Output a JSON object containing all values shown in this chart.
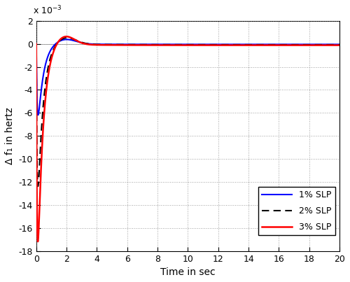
{
  "title": "",
  "xlabel": "Time in sec",
  "ylabel": "Δ f₁ in hertz",
  "xlim": [
    0,
    20
  ],
  "ylim": [
    -0.018,
    0.002
  ],
  "yticks": [
    -18,
    -16,
    -14,
    -12,
    -10,
    -8,
    -6,
    -4,
    -2,
    0,
    2
  ],
  "xticks": [
    0,
    2,
    4,
    6,
    8,
    10,
    12,
    14,
    16,
    18,
    20
  ],
  "scale_label": "x 10$^{-3}$",
  "background_color": "#ffffff",
  "grid_color": "#888888",
  "line1_color": "#0000ff",
  "line2_color": "#000000",
  "line3_color": "#ff0000",
  "legend_labels": [
    "1% SLP",
    "2% SLP",
    "3% SLP"
  ],
  "curves": {
    "slp1": {
      "dip_amp": -0.0062,
      "alpha": 2.8,
      "beta": 18.0,
      "overshoot_amp": 0.00045,
      "t_over": 1.9,
      "sigma_over": 0.7,
      "tau_settle": 2.5,
      "ss": -5e-05
    },
    "slp2": {
      "dip_amp": -0.0124,
      "alpha": 2.8,
      "beta": 20.0,
      "overshoot_amp": 0.00065,
      "t_over": 1.9,
      "sigma_over": 0.7,
      "tau_settle": 2.5,
      "ss": -8e-05
    },
    "slp3": {
      "dip_amp": -0.0172,
      "alpha": 2.8,
      "beta": 22.0,
      "overshoot_amp": 0.00082,
      "t_over": 1.85,
      "sigma_over": 0.65,
      "tau_settle": 2.5,
      "ss": -0.00012
    }
  }
}
